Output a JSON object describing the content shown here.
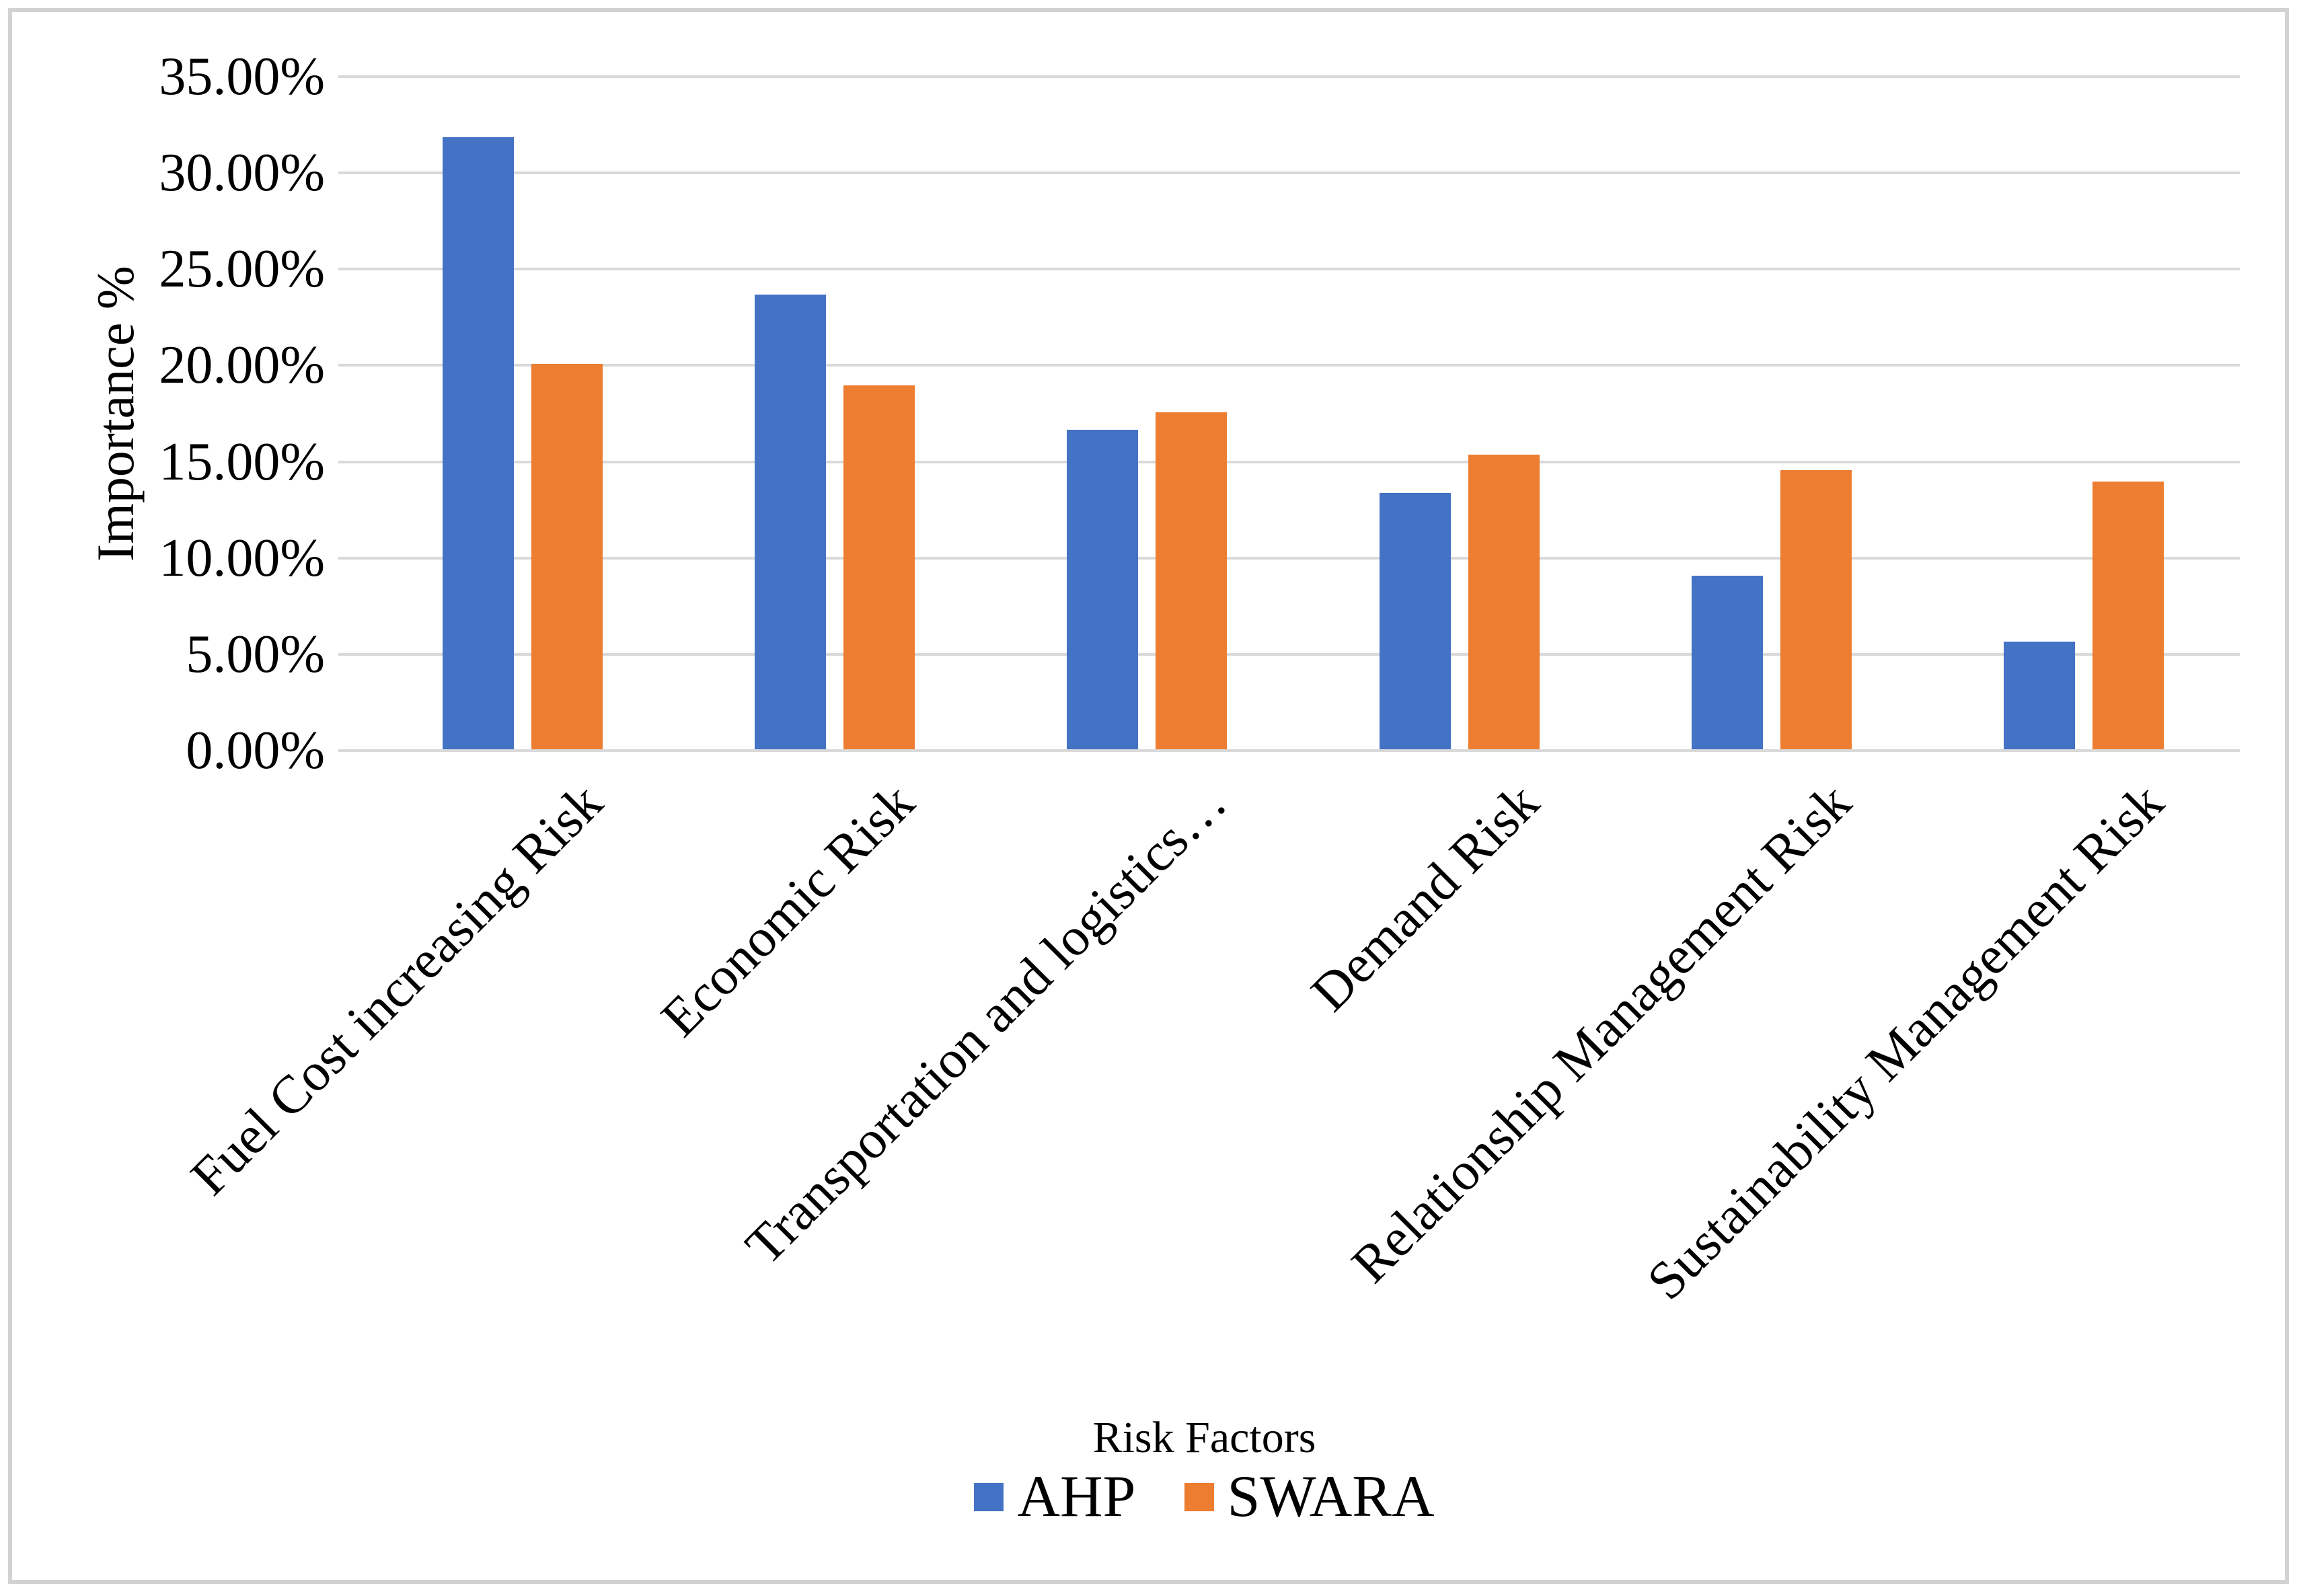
{
  "chart_data": {
    "type": "bar",
    "title": "",
    "ylabel": "Importance %",
    "xlabel": "",
    "legend_title": "Risk Factors",
    "legend_position": "bottom",
    "grid": true,
    "ylim": [
      0,
      35
    ],
    "ytick_step": 5,
    "ytick_labels": [
      "0.00%",
      "5.00%",
      "10.00%",
      "15.00%",
      "20.00%",
      "25.00%",
      "30.00%",
      "35.00%"
    ],
    "categories": [
      "Fuel Cost increasing Risk",
      "Economic Risk",
      "Transportation and logistics…",
      "Demand Risk",
      "Relationship Management Risk",
      "Sustainability Management Risk"
    ],
    "series": [
      {
        "name": "AHP",
        "color": "#4472C4",
        "values": [
          31.8,
          23.6,
          16.6,
          13.3,
          9.0,
          5.6
        ]
      },
      {
        "name": "SWARA",
        "color": "#ED7D31",
        "values": [
          20.0,
          18.9,
          17.5,
          15.3,
          14.5,
          13.9
        ]
      }
    ],
    "colors": {
      "grid": "#D9D9D9",
      "frame_border": "#D2D2D2",
      "text": "#000000",
      "background": "#FFFFFF"
    }
  }
}
